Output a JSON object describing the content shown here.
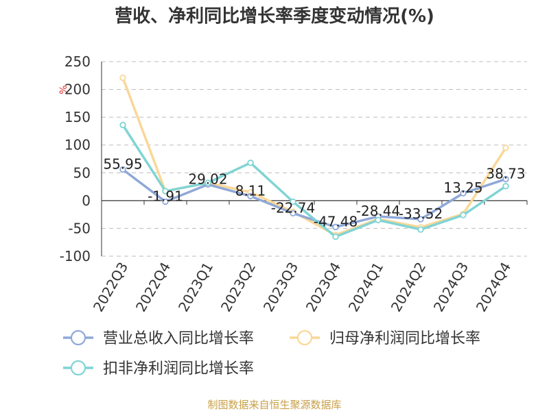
{
  "chart_data": {
    "type": "line",
    "title": "营收、净利同比增长率季度变动情况(%)",
    "ylabel": "%",
    "ylim": [
      -100,
      250
    ],
    "yticks": [
      -100,
      -50,
      0,
      50,
      100,
      150,
      200,
      250
    ],
    "grid": true,
    "categories": [
      "2022Q3",
      "2022Q4",
      "2023Q1",
      "2023Q2",
      "2023Q3",
      "2023Q4",
      "2024Q1",
      "2024Q2",
      "2024Q3",
      "2024Q4"
    ],
    "series": [
      {
        "name": "营业总收入同比增长率",
        "color": "#8fa8d8",
        "values": [
          55.95,
          -1.91,
          29.02,
          8.11,
          -22.74,
          -47.48,
          -28.44,
          -33.52,
          13.25,
          38.73
        ],
        "labels": [
          "55.95",
          "-1.91",
          "29.02",
          "8.11",
          "-22.74",
          "-47.48",
          "-28.44",
          "-33.52",
          "13.25",
          "38.73"
        ]
      },
      {
        "name": "归母净利润同比增长率",
        "color": "#fad797",
        "values": [
          221,
          17,
          32,
          15,
          -20,
          -62,
          -33,
          -48,
          -24,
          95
        ]
      },
      {
        "name": "扣非净利润同比增长率",
        "color": "#80d4d4",
        "values": [
          136,
          17,
          32,
          68,
          -2,
          -65,
          -35,
          -52,
          -26,
          26
        ]
      }
    ],
    "legend_position": "bottom"
  },
  "source": "制图数据来自恒生聚源数据库"
}
